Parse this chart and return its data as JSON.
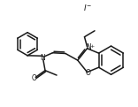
{
  "bg_color": "#ffffff",
  "line_color": "#1a1a1a",
  "line_width": 1.1,
  "figsize": [
    1.56,
    1.21
  ],
  "dpi": 100,
  "xlim": [
    0,
    10
  ],
  "ylim": [
    0,
    7.8
  ]
}
